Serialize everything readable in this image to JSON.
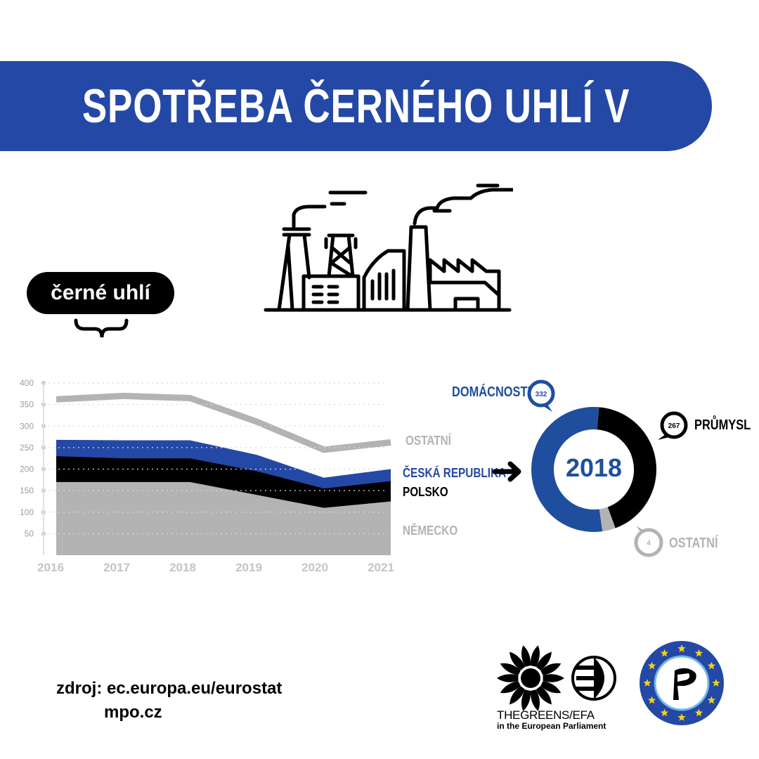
{
  "title": "SPOTŘEBA ČERNÉHO UHLÍ V EVROPĚ",
  "badge": "černé uhlí",
  "series_labels": {
    "ostatni": "OSTATNÍ",
    "cr": "ČESKÁ REPUBLIKA",
    "polsko": "POLSKO",
    "nemecko": "NĚMECKO"
  },
  "donut": {
    "year": "2018",
    "domacnosti": {
      "label": "DOMÁCNOSTI",
      "value": "332"
    },
    "prumysl": {
      "label": "PRŮMYSL",
      "value": "267"
    },
    "ostatni": {
      "label": "OSTATNÍ",
      "value": "4"
    }
  },
  "source": {
    "line1": "zdroj: ec.europa.eu/eurostat",
    "line2": "mpo.cz"
  },
  "logo": {
    "greens_line1": "THEGREENS/EFA",
    "greens_line2": "in the European Parliament"
  },
  "colors": {
    "blue": "#2448a5",
    "donut_blue": "#1f4e9e",
    "black": "#000000",
    "gray": "#b3b3b3",
    "axis_gray": "#bdbdbd"
  },
  "chart_data": [
    {
      "type": "area",
      "x": [
        "2016",
        "2017",
        "2018",
        "2019",
        "2020",
        "2021"
      ],
      "ylim": [
        0,
        400
      ],
      "yticks": [
        50,
        100,
        150,
        200,
        250,
        300,
        350,
        400
      ],
      "stacked": true,
      "series": [
        {
          "name": "NĚMECKO",
          "values": [
            170,
            170,
            170,
            140,
            110,
            125
          ],
          "color": "#b3b3b3"
        },
        {
          "name": "POLSKO",
          "values": [
            60,
            55,
            55,
            55,
            45,
            47
          ],
          "color": "#000000"
        },
        {
          "name": "ČESKÁ REPUBLIKA",
          "values": [
            38,
            42,
            42,
            38,
            25,
            28
          ],
          "color": "#2448a5"
        }
      ],
      "line_series": {
        "name": "OSTATNÍ",
        "values": [
          362,
          370,
          365,
          310,
          245,
          262
        ],
        "color": "#b3b3b3"
      },
      "grid": true
    },
    {
      "type": "pie",
      "title": "2018",
      "categories": [
        "DOMÁCNOSTI",
        "PRŮMYSL",
        "OSTATNÍ"
      ],
      "values": [
        332,
        267,
        4
      ],
      "colors": [
        "#1f4e9e",
        "#000000",
        "#b3b3b3"
      ]
    }
  ]
}
